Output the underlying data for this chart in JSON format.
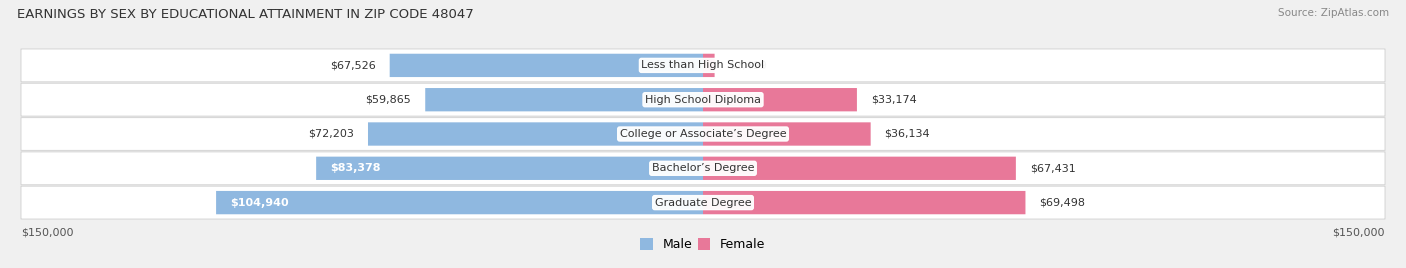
{
  "title": "EARNINGS BY SEX BY EDUCATIONAL ATTAINMENT IN ZIP CODE 48047",
  "source": "Source: ZipAtlas.com",
  "categories": [
    "Less than High School",
    "High School Diploma",
    "College or Associate’s Degree",
    "Bachelor’s Degree",
    "Graduate Degree"
  ],
  "male_values": [
    67526,
    59865,
    72203,
    83378,
    104940
  ],
  "female_values": [
    2499,
    33174,
    36134,
    67431,
    69498
  ],
  "male_color": "#8fb8e0",
  "female_color": "#e87899",
  "max_value": 150000,
  "background_color": "#f0f0f0",
  "row_bg_color": "#ffffff",
  "row_edge_color": "#d8d8d8",
  "legend_male_label": "Male",
  "legend_female_label": "Female",
  "left_axis_label": "$150,000",
  "right_axis_label": "$150,000",
  "title_fontsize": 9.5,
  "bar_label_fontsize": 8,
  "category_fontsize": 8,
  "source_fontsize": 7.5
}
